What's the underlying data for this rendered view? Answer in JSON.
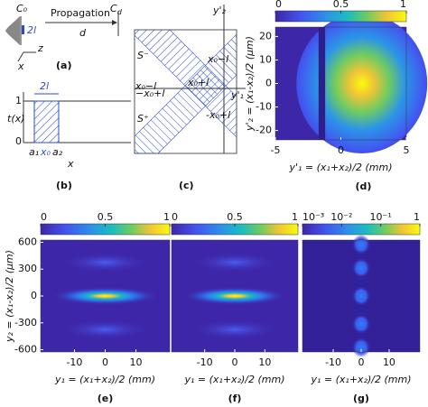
{
  "panel_a": {
    "label": "(a)",
    "c0": "C₀",
    "cd_base": "C",
    "cd_sub": "d",
    "width": "2l",
    "propagation": "Propagation",
    "distance": "d",
    "axis_z": "z",
    "axis_x": "x"
  },
  "panel_b": {
    "label": "(b)",
    "ylabel": "t(x)",
    "xlabel": "x",
    "tick_one": "1",
    "tick_zero": "0",
    "width": "2l",
    "a1": "a₁",
    "x0": "x₀",
    "a2": "a₂"
  },
  "panel_c": {
    "label": "(c)",
    "axis_v": "y'₂",
    "axis_h": "y'₁",
    "s_minus": "S⁻",
    "s_plus": "S⁺",
    "top_right": "x₀−l",
    "center": "x₀+l",
    "bottom_right": "-x₀+l",
    "left_small": "x₀−l",
    "left_small2": "−x₀+l"
  },
  "heatmaps": [
    {
      "label": "(d)",
      "xlabel": "y'₁ = (x₁+x₂)/2 (mm)",
      "ylabel": "y'₂ = (x₁-x₂)/2 (μm)",
      "xlim": [
        -5,
        5
      ],
      "xticks": [
        -5,
        0,
        5
      ],
      "ylim": [
        -24,
        24
      ],
      "yticks": [
        -20,
        -10,
        0,
        10,
        20
      ],
      "clim": [
        0,
        1
      ],
      "cticks": [
        0,
        0.5,
        1
      ]
    },
    {
      "label": "(e)",
      "xlabel": "y₁ = (x₁+x₂)/2 (mm)",
      "ylabel": "y₂ = (x₁-x₂)/2 (μm)",
      "xlim": [
        -21,
        21
      ],
      "xticks": [
        -10,
        0,
        10
      ],
      "ylim": [
        -625,
        625
      ],
      "yticks": [
        -600,
        -300,
        0,
        300,
        600
      ],
      "clim": [
        0,
        1
      ],
      "cticks": [
        0,
        0.5,
        1
      ]
    },
    {
      "label": "(f)",
      "xlabel": "y₁ = (x₁+x₂)/2 (mm)",
      "xlim": [
        -21,
        21
      ],
      "xticks": [
        -10,
        0,
        10
      ],
      "ylim": [
        -625,
        625
      ],
      "clim": [
        0,
        1
      ],
      "cticks": [
        0,
        0.5,
        1
      ]
    },
    {
      "label": "(g)",
      "xlabel": "y₁ = (x₁+x₂)/2 (mm)",
      "xlim": [
        -21,
        21
      ],
      "xticks": [
        -10,
        0,
        10
      ],
      "ylim": [
        -625,
        625
      ],
      "clim": [
        0.001,
        1
      ],
      "clog": true,
      "cticks": [
        {
          "value": 0.001,
          "label": "10⁻³"
        },
        {
          "value": 0.01,
          "label": "10⁻²"
        },
        {
          "value": 0.1,
          "label": "10⁻¹"
        },
        1
      ]
    }
  ]
}
